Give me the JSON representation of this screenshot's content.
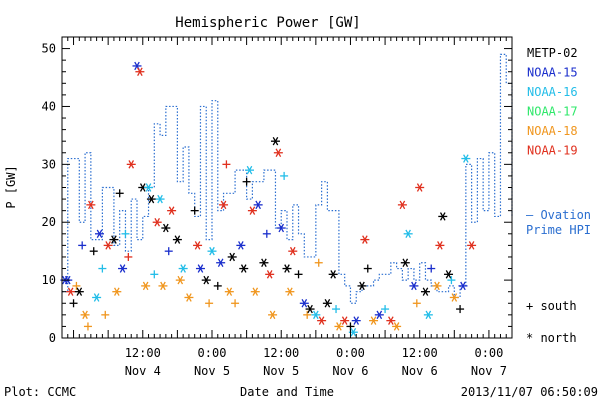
{
  "chart_data": {
    "type": "scatter",
    "title": "Hemispheric Power [GW]",
    "ylabel": "P [GW]",
    "xlabel": "Date and Time",
    "ylim": [
      0,
      52
    ],
    "yticks": [
      0,
      10,
      20,
      30,
      40,
      50
    ],
    "x_start": "2013-11-03 22:00",
    "x_end": "2013-11-07 04:00",
    "xticks": [
      {
        "t": "2013-11-04 12:00",
        "line1": "12:00",
        "line2": "Nov 4"
      },
      {
        "t": "2013-11-05 00:00",
        "line1": "0:00",
        "line2": "Nov 5"
      },
      {
        "t": "2013-11-05 12:00",
        "line1": "12:00",
        "line2": "Nov 5"
      },
      {
        "t": "2013-11-06 00:00",
        "line1": "0:00",
        "line2": "Nov 6"
      },
      {
        "t": "2013-11-06 12:00",
        "line1": "12:00",
        "line2": "Nov 6"
      },
      {
        "t": "2013-11-07 00:00",
        "line1": "0:00",
        "line2": "Nov 7"
      }
    ],
    "legend": {
      "placement": "right",
      "satellites": [
        {
          "name": "METP-02",
          "color": "#000000"
        },
        {
          "name": "NOAA-15",
          "color": "#1a2ecc"
        },
        {
          "name": "NOAA-16",
          "color": "#22bde8"
        },
        {
          "name": "NOAA-17",
          "color": "#2ee86a"
        },
        {
          "name": "NOAA-18",
          "color": "#f0961e"
        },
        {
          "name": "NOAA-19",
          "color": "#e0301e"
        }
      ],
      "ovation_line1": "— Ovation",
      "ovation_line2": "Prime HPI",
      "ovation_color": "#2a6ed0",
      "south_label": "+ south",
      "north_label": "* north",
      "south_symbol": "+",
      "north_symbol": "*"
    },
    "ovation_series": [
      {
        "x": "2013-11-03 22:00",
        "y": 8
      },
      {
        "x": "2013-11-03 23:00",
        "y": 31
      },
      {
        "x": "2013-11-04 01:00",
        "y": 20
      },
      {
        "x": "2013-11-04 02:00",
        "y": 32
      },
      {
        "x": "2013-11-04 03:00",
        "y": 17
      },
      {
        "x": "2013-11-04 05:00",
        "y": 26
      },
      {
        "x": "2013-11-04 07:00",
        "y": 16
      },
      {
        "x": "2013-11-04 08:00",
        "y": 22
      },
      {
        "x": "2013-11-04 09:00",
        "y": 15
      },
      {
        "x": "2013-11-04 10:00",
        "y": 24
      },
      {
        "x": "2013-11-04 11:00",
        "y": 17
      },
      {
        "x": "2013-11-04 12:00",
        "y": 21
      },
      {
        "x": "2013-11-04 13:00",
        "y": 26
      },
      {
        "x": "2013-11-04 14:00",
        "y": 37
      },
      {
        "x": "2013-11-04 15:00",
        "y": 35
      },
      {
        "x": "2013-11-04 16:00",
        "y": 40
      },
      {
        "x": "2013-11-04 18:00",
        "y": 27
      },
      {
        "x": "2013-11-04 19:00",
        "y": 33
      },
      {
        "x": "2013-11-04 20:00",
        "y": 25
      },
      {
        "x": "2013-11-04 21:00",
        "y": 21
      },
      {
        "x": "2013-11-04 22:00",
        "y": 40
      },
      {
        "x": "2013-11-04 23:00",
        "y": 17
      },
      {
        "x": "2013-11-05 00:00",
        "y": 41
      },
      {
        "x": "2013-11-05 01:00",
        "y": 22
      },
      {
        "x": "2013-11-05 02:00",
        "y": 25
      },
      {
        "x": "2013-11-05 04:00",
        "y": 29
      },
      {
        "x": "2013-11-05 06:00",
        "y": 24
      },
      {
        "x": "2013-11-05 07:00",
        "y": 27
      },
      {
        "x": "2013-11-05 09:00",
        "y": 29
      },
      {
        "x": "2013-11-05 11:00",
        "y": 19
      },
      {
        "x": "2013-11-05 12:00",
        "y": 22
      },
      {
        "x": "2013-11-05 13:00",
        "y": 17
      },
      {
        "x": "2013-11-05 14:00",
        "y": 23
      },
      {
        "x": "2013-11-05 15:00",
        "y": 18
      },
      {
        "x": "2013-11-05 16:00",
        "y": 14
      },
      {
        "x": "2013-11-05 18:00",
        "y": 23
      },
      {
        "x": "2013-11-05 19:00",
        "y": 27
      },
      {
        "x": "2013-11-05 20:00",
        "y": 22
      },
      {
        "x": "2013-11-05 22:00",
        "y": 11
      },
      {
        "x": "2013-11-05 23:00",
        "y": 9
      },
      {
        "x": "2013-11-06 00:00",
        "y": 6
      },
      {
        "x": "2013-11-06 01:00",
        "y": 8
      },
      {
        "x": "2013-11-06 02:00",
        "y": 9
      },
      {
        "x": "2013-11-06 04:00",
        "y": 10
      },
      {
        "x": "2013-11-06 05:00",
        "y": 11
      },
      {
        "x": "2013-11-06 07:00",
        "y": 13
      },
      {
        "x": "2013-11-06 08:00",
        "y": 12
      },
      {
        "x": "2013-11-06 09:00",
        "y": 10
      },
      {
        "x": "2013-11-06 10:00",
        "y": 12
      },
      {
        "x": "2013-11-06 11:00",
        "y": 10
      },
      {
        "x": "2013-11-06 12:00",
        "y": 13
      },
      {
        "x": "2013-11-06 13:00",
        "y": 10
      },
      {
        "x": "2013-11-06 14:00",
        "y": 9
      },
      {
        "x": "2013-11-06 15:00",
        "y": 8
      },
      {
        "x": "2013-11-06 17:00",
        "y": 9
      },
      {
        "x": "2013-11-06 18:00",
        "y": 7
      },
      {
        "x": "2013-11-06 19:00",
        "y": 9
      },
      {
        "x": "2013-11-06 20:00",
        "y": 30
      },
      {
        "x": "2013-11-06 21:00",
        "y": 20
      },
      {
        "x": "2013-11-06 22:00",
        "y": 31
      },
      {
        "x": "2013-11-06 23:00",
        "y": 22
      },
      {
        "x": "2013-11-07 00:00",
        "y": 32
      },
      {
        "x": "2013-11-07 01:00",
        "y": 21
      },
      {
        "x": "2013-11-07 02:00",
        "y": 49
      },
      {
        "x": "2013-11-07 03:00",
        "y": 44
      },
      {
        "x": "2013-11-07 04:00",
        "y": 21
      }
    ],
    "points": [
      {
        "x": "2013-11-03 22:30",
        "y": 10,
        "sat": "NOAA-15",
        "hemi": "north"
      },
      {
        "x": "2013-11-03 23:00",
        "y": 10,
        "sat": "NOAA-15",
        "hemi": "north"
      },
      {
        "x": "2013-11-03 23:30",
        "y": 8,
        "sat": "NOAA-19",
        "hemi": "north"
      },
      {
        "x": "2013-11-04 00:00",
        "y": 6,
        "sat": "METP-02",
        "hemi": "south"
      },
      {
        "x": "2013-11-04 00:30",
        "y": 9,
        "sat": "NOAA-18",
        "hemi": "south"
      },
      {
        "x": "2013-11-04 01:00",
        "y": 8,
        "sat": "METP-02",
        "hemi": "north"
      },
      {
        "x": "2013-11-04 01:30",
        "y": 16,
        "sat": "NOAA-15",
        "hemi": "south"
      },
      {
        "x": "2013-11-04 02:00",
        "y": 4,
        "sat": "NOAA-18",
        "hemi": "north"
      },
      {
        "x": "2013-11-04 02:30",
        "y": 2,
        "sat": "NOAA-18",
        "hemi": "south"
      },
      {
        "x": "2013-11-04 03:00",
        "y": 23,
        "sat": "NOAA-19",
        "hemi": "north"
      },
      {
        "x": "2013-11-04 03:30",
        "y": 15,
        "sat": "METP-02",
        "hemi": "south"
      },
      {
        "x": "2013-11-04 04:00",
        "y": 7,
        "sat": "NOAA-16",
        "hemi": "north"
      },
      {
        "x": "2013-11-04 04:30",
        "y": 18,
        "sat": "NOAA-15",
        "hemi": "north"
      },
      {
        "x": "2013-11-04 05:00",
        "y": 12,
        "sat": "NOAA-16",
        "hemi": "south"
      },
      {
        "x": "2013-11-04 05:30",
        "y": 4,
        "sat": "NOAA-18",
        "hemi": "south"
      },
      {
        "x": "2013-11-04 06:00",
        "y": 16,
        "sat": "NOAA-19",
        "hemi": "north"
      },
      {
        "x": "2013-11-04 07:00",
        "y": 17,
        "sat": "METP-02",
        "hemi": "north"
      },
      {
        "x": "2013-11-04 07:30",
        "y": 8,
        "sat": "NOAA-18",
        "hemi": "north"
      },
      {
        "x": "2013-11-04 08:00",
        "y": 25,
        "sat": "METP-02",
        "hemi": "south"
      },
      {
        "x": "2013-11-04 08:30",
        "y": 12,
        "sat": "NOAA-15",
        "hemi": "north"
      },
      {
        "x": "2013-11-04 09:00",
        "y": 18,
        "sat": "NOAA-16",
        "hemi": "south"
      },
      {
        "x": "2013-11-04 09:30",
        "y": 14,
        "sat": "NOAA-19",
        "hemi": "south"
      },
      {
        "x": "2013-11-04 10:00",
        "y": 30,
        "sat": "NOAA-19",
        "hemi": "north"
      },
      {
        "x": "2013-11-04 11:00",
        "y": 47,
        "sat": "NOAA-15",
        "hemi": "north"
      },
      {
        "x": "2013-11-04 11:30",
        "y": 46,
        "sat": "NOAA-19",
        "hemi": "north"
      },
      {
        "x": "2013-11-04 12:00",
        "y": 26,
        "sat": "METP-02",
        "hemi": "north"
      },
      {
        "x": "2013-11-04 12:30",
        "y": 9,
        "sat": "NOAA-18",
        "hemi": "north"
      },
      {
        "x": "2013-11-04 13:00",
        "y": 26,
        "sat": "NOAA-16",
        "hemi": "north"
      },
      {
        "x": "2013-11-04 13:30",
        "y": 24,
        "sat": "METP-02",
        "hemi": "north"
      },
      {
        "x": "2013-11-04 14:00",
        "y": 11,
        "sat": "NOAA-16",
        "hemi": "south"
      },
      {
        "x": "2013-11-04 14:30",
        "y": 20,
        "sat": "NOAA-19",
        "hemi": "north"
      },
      {
        "x": "2013-11-04 15:00",
        "y": 24,
        "sat": "NOAA-16",
        "hemi": "north"
      },
      {
        "x": "2013-11-04 15:30",
        "y": 9,
        "sat": "NOAA-18",
        "hemi": "north"
      },
      {
        "x": "2013-11-04 16:00",
        "y": 19,
        "sat": "METP-02",
        "hemi": "north"
      },
      {
        "x": "2013-11-04 16:30",
        "y": 15,
        "sat": "NOAA-15",
        "hemi": "south"
      },
      {
        "x": "2013-11-04 17:00",
        "y": 22,
        "sat": "NOAA-19",
        "hemi": "north"
      },
      {
        "x": "2013-11-04 18:00",
        "y": 17,
        "sat": "METP-02",
        "hemi": "north"
      },
      {
        "x": "2013-11-04 18:30",
        "y": 10,
        "sat": "NOAA-18",
        "hemi": "north"
      },
      {
        "x": "2013-11-04 19:00",
        "y": 12,
        "sat": "NOAA-16",
        "hemi": "north"
      },
      {
        "x": "2013-11-04 20:00",
        "y": 7,
        "sat": "NOAA-18",
        "hemi": "north"
      },
      {
        "x": "2013-11-04 21:00",
        "y": 22,
        "sat": "METP-02",
        "hemi": "south"
      },
      {
        "x": "2013-11-04 21:30",
        "y": 16,
        "sat": "NOAA-19",
        "hemi": "north"
      },
      {
        "x": "2013-11-04 22:00",
        "y": 12,
        "sat": "NOAA-15",
        "hemi": "north"
      },
      {
        "x": "2013-11-04 23:00",
        "y": 10,
        "sat": "METP-02",
        "hemi": "north"
      },
      {
        "x": "2013-11-04 23:30",
        "y": 6,
        "sat": "NOAA-18",
        "hemi": "south"
      },
      {
        "x": "2013-11-05 00:00",
        "y": 15,
        "sat": "NOAA-16",
        "hemi": "north"
      },
      {
        "x": "2013-11-05 01:00",
        "y": 9,
        "sat": "METP-02",
        "hemi": "south"
      },
      {
        "x": "2013-11-05 01:30",
        "y": 13,
        "sat": "NOAA-15",
        "hemi": "north"
      },
      {
        "x": "2013-11-05 02:00",
        "y": 23,
        "sat": "NOAA-19",
        "hemi": "north"
      },
      {
        "x": "2013-11-05 02:30",
        "y": 30,
        "sat": "NOAA-19",
        "hemi": "south"
      },
      {
        "x": "2013-11-05 03:00",
        "y": 8,
        "sat": "NOAA-18",
        "hemi": "north"
      },
      {
        "x": "2013-11-05 03:30",
        "y": 14,
        "sat": "METP-02",
        "hemi": "north"
      },
      {
        "x": "2013-11-05 04:00",
        "y": 6,
        "sat": "NOAA-18",
        "hemi": "south"
      },
      {
        "x": "2013-11-05 05:00",
        "y": 16,
        "sat": "NOAA-15",
        "hemi": "north"
      },
      {
        "x": "2013-11-05 05:30",
        "y": 12,
        "sat": "METP-02",
        "hemi": "north"
      },
      {
        "x": "2013-11-05 06:00",
        "y": 27,
        "sat": "METP-02",
        "hemi": "south"
      },
      {
        "x": "2013-11-05 06:30",
        "y": 29,
        "sat": "NOAA-16",
        "hemi": "north"
      },
      {
        "x": "2013-11-05 07:00",
        "y": 22,
        "sat": "NOAA-19",
        "hemi": "north"
      },
      {
        "x": "2013-11-05 07:30",
        "y": 8,
        "sat": "NOAA-18",
        "hemi": "north"
      },
      {
        "x": "2013-11-05 08:00",
        "y": 23,
        "sat": "NOAA-15",
        "hemi": "north"
      },
      {
        "x": "2013-11-05 09:00",
        "y": 13,
        "sat": "METP-02",
        "hemi": "north"
      },
      {
        "x": "2013-11-05 09:30",
        "y": 18,
        "sat": "NOAA-15",
        "hemi": "south"
      },
      {
        "x": "2013-11-05 10:00",
        "y": 11,
        "sat": "NOAA-19",
        "hemi": "north"
      },
      {
        "x": "2013-11-05 10:30",
        "y": 4,
        "sat": "NOAA-18",
        "hemi": "north"
      },
      {
        "x": "2013-11-05 11:00",
        "y": 34,
        "sat": "METP-02",
        "hemi": "north"
      },
      {
        "x": "2013-11-05 11:30",
        "y": 32,
        "sat": "NOAA-19",
        "hemi": "north"
      },
      {
        "x": "2013-11-05 12:00",
        "y": 19,
        "sat": "NOAA-15",
        "hemi": "north"
      },
      {
        "x": "2013-11-05 12:30",
        "y": 28,
        "sat": "NOAA-16",
        "hemi": "south"
      },
      {
        "x": "2013-11-05 13:00",
        "y": 12,
        "sat": "METP-02",
        "hemi": "north"
      },
      {
        "x": "2013-11-05 13:30",
        "y": 8,
        "sat": "NOAA-18",
        "hemi": "north"
      },
      {
        "x": "2013-11-05 14:00",
        "y": 15,
        "sat": "NOAA-19",
        "hemi": "north"
      },
      {
        "x": "2013-11-05 15:00",
        "y": 11,
        "sat": "METP-02",
        "hemi": "south"
      },
      {
        "x": "2013-11-05 16:00",
        "y": 6,
        "sat": "NOAA-15",
        "hemi": "north"
      },
      {
        "x": "2013-11-05 16:30",
        "y": 4,
        "sat": "NOAA-18",
        "hemi": "south"
      },
      {
        "x": "2013-11-05 17:00",
        "y": 5,
        "sat": "METP-02",
        "hemi": "north"
      },
      {
        "x": "2013-11-05 18:00",
        "y": 4,
        "sat": "NOAA-16",
        "hemi": "north"
      },
      {
        "x": "2013-11-05 18:30",
        "y": 13,
        "sat": "NOAA-18",
        "hemi": "south"
      },
      {
        "x": "2013-11-05 19:00",
        "y": 3,
        "sat": "NOAA-19",
        "hemi": "north"
      },
      {
        "x": "2013-11-05 20:00",
        "y": 6,
        "sat": "METP-02",
        "hemi": "north"
      },
      {
        "x": "2013-11-05 21:00",
        "y": 11,
        "sat": "METP-02",
        "hemi": "north"
      },
      {
        "x": "2013-11-05 21:30",
        "y": 5,
        "sat": "NOAA-16",
        "hemi": "south"
      },
      {
        "x": "2013-11-05 22:00",
        "y": 2,
        "sat": "NOAA-18",
        "hemi": "north"
      },
      {
        "x": "2013-11-05 23:00",
        "y": 3,
        "sat": "NOAA-19",
        "hemi": "north"
      },
      {
        "x": "2013-11-06 00:00",
        "y": 2,
        "sat": "METP-02",
        "hemi": "south"
      },
      {
        "x": "2013-11-06 00:30",
        "y": 1,
        "sat": "NOAA-16",
        "hemi": "north"
      },
      {
        "x": "2013-11-06 01:00",
        "y": 3,
        "sat": "NOAA-15",
        "hemi": "north"
      },
      {
        "x": "2013-11-06 02:00",
        "y": 9,
        "sat": "METP-02",
        "hemi": "north"
      },
      {
        "x": "2013-11-06 02:30",
        "y": 17,
        "sat": "NOAA-19",
        "hemi": "north"
      },
      {
        "x": "2013-11-06 03:00",
        "y": 12,
        "sat": "METP-02",
        "hemi": "south"
      },
      {
        "x": "2013-11-06 04:00",
        "y": 3,
        "sat": "NOAA-18",
        "hemi": "north"
      },
      {
        "x": "2013-11-06 05:00",
        "y": 4,
        "sat": "NOAA-15",
        "hemi": "north"
      },
      {
        "x": "2013-11-06 06:00",
        "y": 5,
        "sat": "NOAA-16",
        "hemi": "south"
      },
      {
        "x": "2013-11-06 07:00",
        "y": 3,
        "sat": "NOAA-19",
        "hemi": "north"
      },
      {
        "x": "2013-11-06 08:00",
        "y": 2,
        "sat": "NOAA-18",
        "hemi": "north"
      },
      {
        "x": "2013-11-06 09:00",
        "y": 23,
        "sat": "NOAA-19",
        "hemi": "north"
      },
      {
        "x": "2013-11-06 09:30",
        "y": 13,
        "sat": "METP-02",
        "hemi": "north"
      },
      {
        "x": "2013-11-06 10:00",
        "y": 18,
        "sat": "NOAA-16",
        "hemi": "north"
      },
      {
        "x": "2013-11-06 11:00",
        "y": 9,
        "sat": "NOAA-15",
        "hemi": "north"
      },
      {
        "x": "2013-11-06 11:30",
        "y": 6,
        "sat": "NOAA-18",
        "hemi": "south"
      },
      {
        "x": "2013-11-06 12:00",
        "y": 26,
        "sat": "NOAA-19",
        "hemi": "north"
      },
      {
        "x": "2013-11-06 13:00",
        "y": 8,
        "sat": "METP-02",
        "hemi": "north"
      },
      {
        "x": "2013-11-06 13:30",
        "y": 4,
        "sat": "NOAA-16",
        "hemi": "north"
      },
      {
        "x": "2013-11-06 14:00",
        "y": 12,
        "sat": "NOAA-15",
        "hemi": "south"
      },
      {
        "x": "2013-11-06 15:00",
        "y": 9,
        "sat": "NOAA-18",
        "hemi": "north"
      },
      {
        "x": "2013-11-06 15:30",
        "y": 16,
        "sat": "NOAA-19",
        "hemi": "north"
      },
      {
        "x": "2013-11-06 16:00",
        "y": 21,
        "sat": "METP-02",
        "hemi": "north"
      },
      {
        "x": "2013-11-06 17:00",
        "y": 11,
        "sat": "METP-02",
        "hemi": "north"
      },
      {
        "x": "2013-11-06 17:30",
        "y": 10,
        "sat": "NOAA-16",
        "hemi": "south"
      },
      {
        "x": "2013-11-06 18:00",
        "y": 7,
        "sat": "NOAA-18",
        "hemi": "north"
      },
      {
        "x": "2013-11-06 19:00",
        "y": 5,
        "sat": "METP-02",
        "hemi": "south"
      },
      {
        "x": "2013-11-06 19:30",
        "y": 9,
        "sat": "NOAA-15",
        "hemi": "north"
      },
      {
        "x": "2013-11-06 20:00",
        "y": 31,
        "sat": "NOAA-16",
        "hemi": "north"
      },
      {
        "x": "2013-11-06 21:00",
        "y": 16,
        "sat": "NOAA-19",
        "hemi": "north"
      }
    ]
  },
  "footer": {
    "left": "Plot: CCMC",
    "center": "Date and Time",
    "right": "2013/11/07 06:50:09"
  }
}
